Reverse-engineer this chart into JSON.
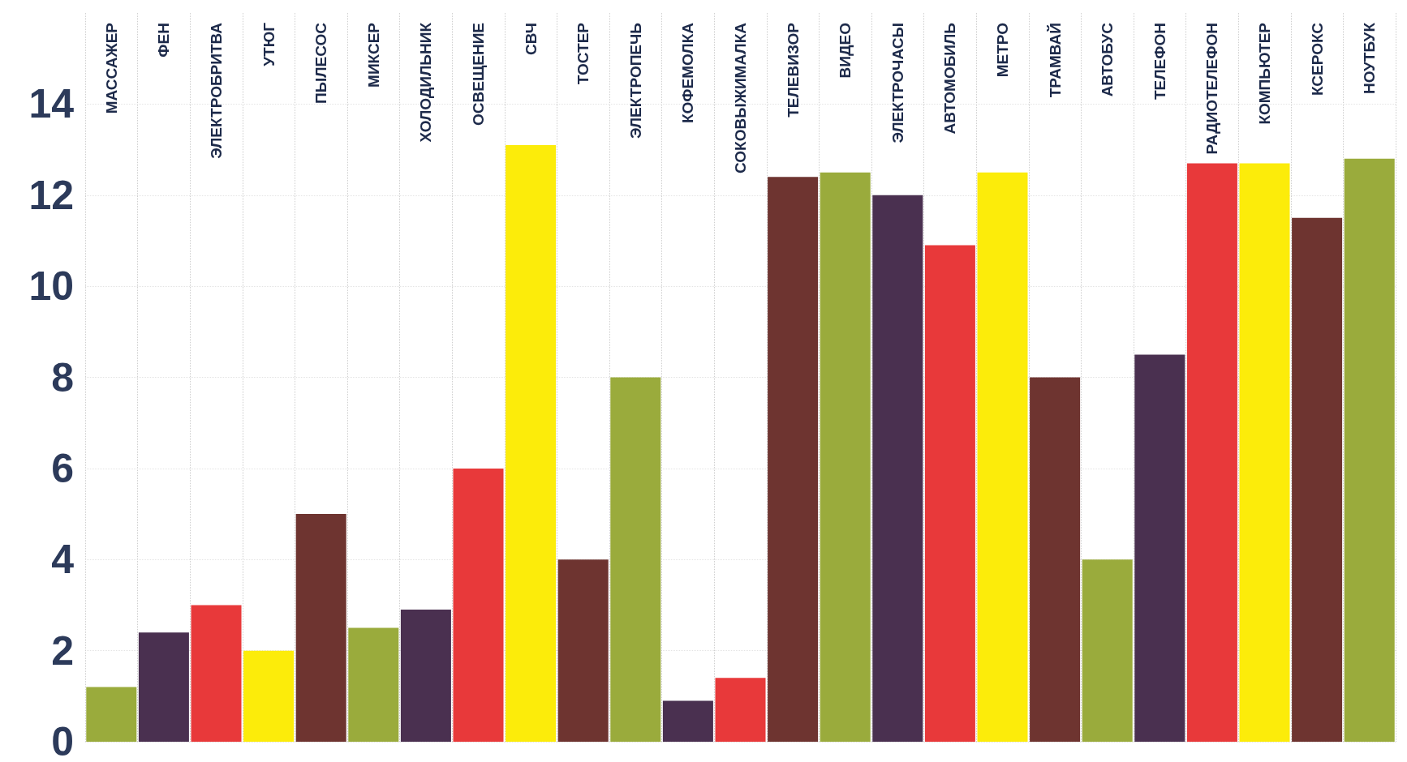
{
  "chart_data": {
    "type": "bar",
    "categories": [
      "МАССАЖЕР",
      "ФЕН",
      "ЭЛЕКТРОБРИТВА",
      "УТЮГ",
      "ПЫЛЕСОС",
      "МИКСЕР",
      "ХОЛОДИЛЬНИК",
      "ОСВЕЩЕНИЕ",
      "СВЧ",
      "ТОСТЕР",
      "ЭЛЕКТРОПЕЧЬ",
      "КОФЕМОЛКА",
      "СОКОВЫЖИМАЛКА",
      "ТЕЛЕВИЗОР",
      "ВИДЕО",
      "ЭЛЕКТРОЧАСЫ",
      "АВТОМОБИЛЬ",
      "МЕТРО",
      "ТРАМВАЙ",
      "АВТОБУС",
      "ТЕЛЕФОН",
      "РАДИОТЕЛЕФОН",
      "КОМПЬЮТЕР",
      "КСЕРОКС",
      "НОУТБУК"
    ],
    "values": [
      1.2,
      2.4,
      3.0,
      2.0,
      5.0,
      2.5,
      2.9,
      6.0,
      13.1,
      4.0,
      8.0,
      0.9,
      1.4,
      12.4,
      12.5,
      12.0,
      10.9,
      12.5,
      8.0,
      4.0,
      8.5,
      12.7,
      12.7,
      11.5,
      12.8
    ],
    "colors": [
      "#9aab3c",
      "#4a3050",
      "#e8393a",
      "#fcec0a",
      "#6e3430",
      "#9aab3c",
      "#4a3050",
      "#e8393a",
      "#fcec0a",
      "#6e3430",
      "#9aab3c",
      "#4a3050",
      "#e8393a",
      "#6e3430",
      "#9aab3c",
      "#4a3050",
      "#e8393a",
      "#fcec0a",
      "#6e3430",
      "#9aab3c",
      "#4a3050",
      "#e8393a",
      "#fcec0a",
      "#6e3430",
      "#9aab3c"
    ],
    "ylim": [
      0,
      16
    ],
    "yticks": [
      0,
      2,
      4,
      6,
      8,
      10,
      12,
      14
    ],
    "grid": true
  }
}
